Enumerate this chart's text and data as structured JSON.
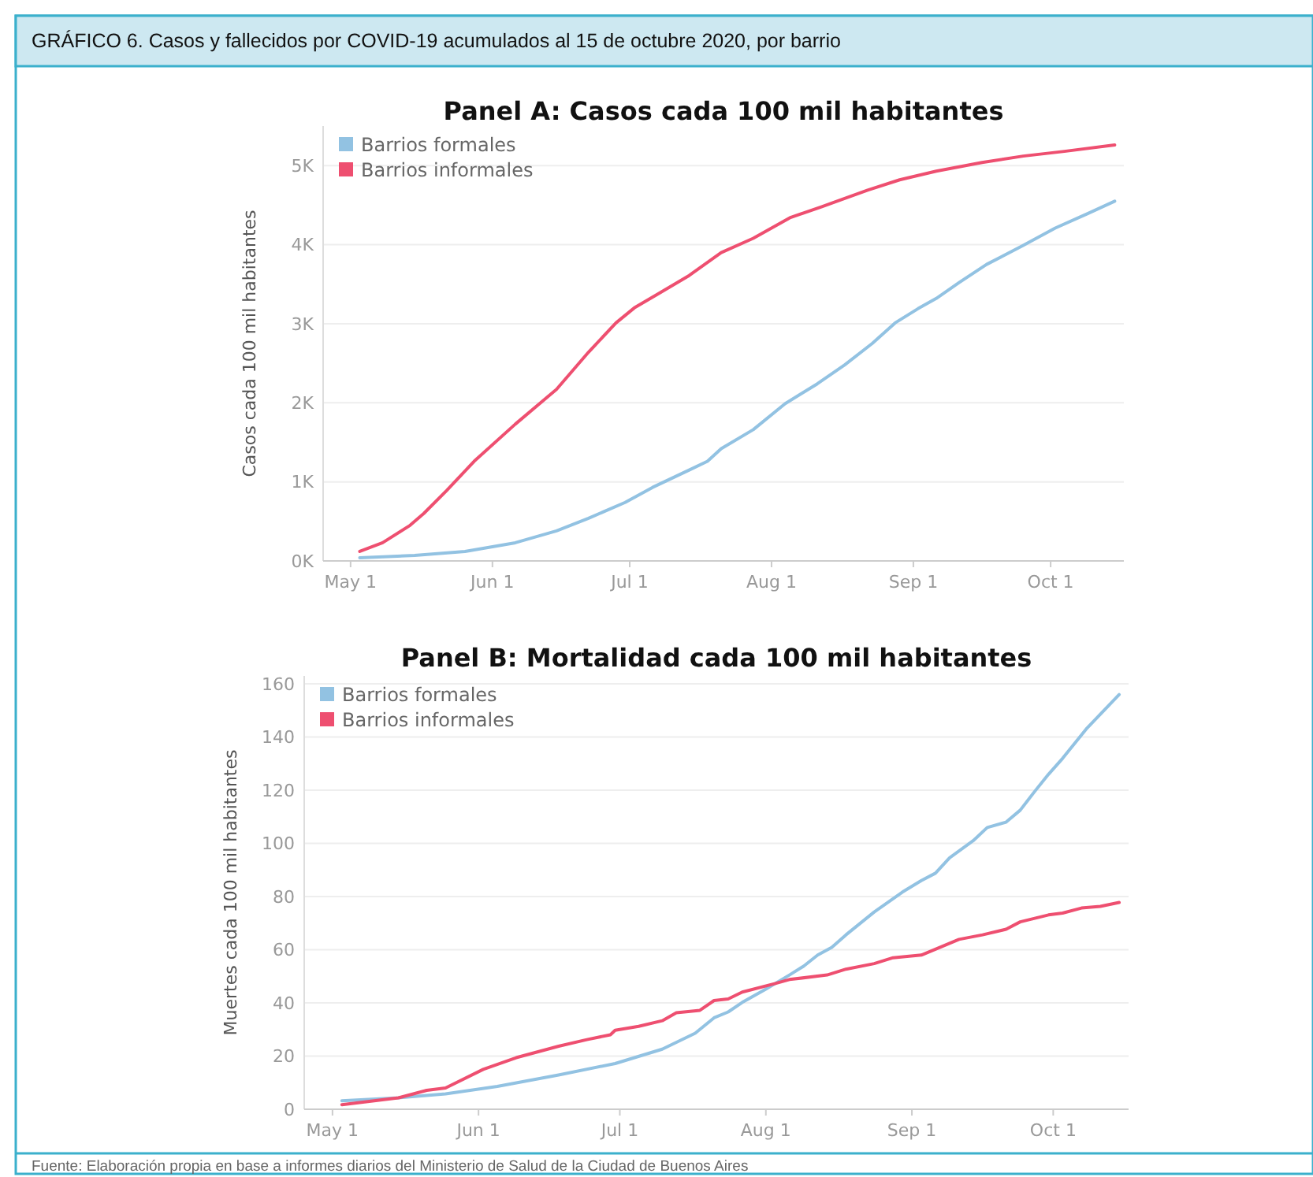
{
  "chart_data": [
    {
      "type": "line",
      "title": "Panel A: Casos cada 100 mil habitantes",
      "ylabel": "Casos cada 100 mil habitantes",
      "annotations": [
        "GRÁFICO 6. Casos y fallecidos por COVID-19 acumulados al 15 de octubre 2020, por barrio"
      ],
      "xlim": [
        "2020-04-25",
        "2020-10-17"
      ],
      "xticks": [
        {
          "value": "2020-05-01",
          "label": "May 1"
        },
        {
          "value": "2020-06-01",
          "label": "Jun 1"
        },
        {
          "value": "2020-07-01",
          "label": "Jul 1"
        },
        {
          "value": "2020-08-01",
          "label": "Aug 1"
        },
        {
          "value": "2020-09-01",
          "label": "Sep 1"
        },
        {
          "value": "2020-10-01",
          "label": "Oct 1"
        }
      ],
      "ylim": [
        0,
        5500
      ],
      "yticks": [
        {
          "value": 0,
          "label": "0K"
        },
        {
          "value": 1000,
          "label": "1K"
        },
        {
          "value": 2000,
          "label": "2K"
        },
        {
          "value": 3000,
          "label": "3K"
        },
        {
          "value": 4000,
          "label": "4K"
        },
        {
          "value": 5000,
          "label": "5K"
        }
      ],
      "grid": "y",
      "legend": "top left",
      "marker": "none",
      "line_style": "solid",
      "series": [
        {
          "name": "Barrios formales",
          "color": "#92c2e2",
          "x": [
            "2020-05-03",
            "2020-05-15",
            "2020-05-26",
            "2020-06-06",
            "2020-06-15",
            "2020-06-22",
            "2020-06-30",
            "2020-07-06",
            "2020-07-14",
            "2020-07-18",
            "2020-07-21",
            "2020-07-28",
            "2020-08-04",
            "2020-08-11",
            "2020-08-17",
            "2020-08-23",
            "2020-08-28",
            "2020-09-02",
            "2020-09-06",
            "2020-09-11",
            "2020-09-17",
            "2020-09-25",
            "2020-10-02",
            "2020-10-09",
            "2020-10-15"
          ],
          "values": [
            40,
            70,
            120,
            230,
            380,
            540,
            740,
            930,
            1150,
            1260,
            1420,
            1660,
            1990,
            2240,
            2480,
            2750,
            3010,
            3190,
            3320,
            3520,
            3750,
            3990,
            4210,
            4390,
            4550
          ]
        },
        {
          "name": "Barrios informales",
          "color": "#ee4f70",
          "x": [
            "2020-05-03",
            "2020-05-08",
            "2020-05-14",
            "2020-05-17",
            "2020-05-22",
            "2020-05-28",
            "2020-06-06",
            "2020-06-15",
            "2020-06-22",
            "2020-06-28",
            "2020-07-02",
            "2020-07-07",
            "2020-07-14",
            "2020-07-21",
            "2020-07-28",
            "2020-08-05",
            "2020-08-12",
            "2020-08-22",
            "2020-08-29",
            "2020-09-06",
            "2020-09-16",
            "2020-09-25",
            "2020-10-04",
            "2020-10-15"
          ],
          "values": [
            120,
            230,
            450,
            600,
            890,
            1260,
            1730,
            2170,
            2640,
            3010,
            3200,
            3370,
            3610,
            3900,
            4080,
            4340,
            4480,
            4690,
            4820,
            4930,
            5040,
            5120,
            5180,
            5260
          ]
        }
      ]
    },
    {
      "type": "line",
      "title": "Panel B: Mortalidad cada 100 mil habitantes",
      "ylabel": "Muertes cada 100 mil habitantes",
      "annotations": [
        "Fuente: Elaboración propia en base a informes diarios del Ministerio de Salud de la Ciudad de Buenos Aires"
      ],
      "xlim": [
        "2020-04-25",
        "2020-10-17"
      ],
      "xticks": [
        {
          "value": "2020-05-01",
          "label": "May 1"
        },
        {
          "value": "2020-06-01",
          "label": "Jun 1"
        },
        {
          "value": "2020-07-01",
          "label": "Jul 1"
        },
        {
          "value": "2020-08-01",
          "label": "Aug 1"
        },
        {
          "value": "2020-09-01",
          "label": "Sep 1"
        },
        {
          "value": "2020-10-01",
          "label": "Oct 1"
        }
      ],
      "ylim": [
        0,
        163
      ],
      "yticks": [
        0,
        20,
        40,
        60,
        80,
        100,
        120,
        140,
        160
      ],
      "grid": "y",
      "legend": "top left",
      "marker": "none",
      "line_style": "solid",
      "series": [
        {
          "name": "Barrios formales",
          "color": "#92c2e2",
          "x": [
            "2020-05-03",
            "2020-05-15",
            "2020-05-25",
            "2020-06-05",
            "2020-06-18",
            "2020-06-30",
            "2020-07-10",
            "2020-07-17",
            "2020-07-21",
            "2020-07-24",
            "2020-07-27",
            "2020-08-01",
            "2020-08-06",
            "2020-08-09",
            "2020-08-12",
            "2020-08-15",
            "2020-08-18",
            "2020-08-24",
            "2020-08-30",
            "2020-09-03",
            "2020-09-06",
            "2020-09-09",
            "2020-09-14",
            "2020-09-17",
            "2020-09-21",
            "2020-09-24",
            "2020-09-27",
            "2020-09-30",
            "2020-10-03",
            "2020-10-08",
            "2020-10-15"
          ],
          "values": [
            3.2,
            4.3,
            5.8,
            8.6,
            12.9,
            17.2,
            22.6,
            28.6,
            34.4,
            36.6,
            40.2,
            45.2,
            50.5,
            53.8,
            58,
            60.9,
            65.6,
            74.2,
            81.7,
            86,
            88.8,
            94.6,
            101,
            106,
            108,
            112.5,
            119.4,
            126,
            132,
            143,
            156
          ]
        },
        {
          "name": "Barrios informales",
          "color": "#ee4f70",
          "x": [
            "2020-05-03",
            "2020-05-15",
            "2020-05-21",
            "2020-05-25",
            "2020-06-02",
            "2020-06-09",
            "2020-06-18",
            "2020-06-24",
            "2020-06-29",
            "2020-06-30",
            "2020-07-05",
            "2020-07-10",
            "2020-07-13",
            "2020-07-18",
            "2020-07-21",
            "2020-07-24",
            "2020-07-27",
            "2020-08-03",
            "2020-08-06",
            "2020-08-14",
            "2020-08-18",
            "2020-08-24",
            "2020-08-28",
            "2020-09-03",
            "2020-09-08",
            "2020-09-11",
            "2020-09-16",
            "2020-09-21",
            "2020-09-24",
            "2020-09-30",
            "2020-10-03",
            "2020-10-07",
            "2020-10-11",
            "2020-10-15"
          ],
          "values": [
            1.7,
            4.3,
            7.1,
            8,
            15,
            19.4,
            23.7,
            26.2,
            28,
            29.7,
            31.2,
            33.3,
            36.3,
            37.2,
            40.9,
            41.5,
            44.1,
            47.3,
            48.8,
            50.5,
            52.7,
            54.8,
            57,
            58,
            61.7,
            63.9,
            65.6,
            67.7,
            70.5,
            73.1,
            73.8,
            75.7,
            76.3,
            77.8
          ]
        }
      ]
    }
  ]
}
